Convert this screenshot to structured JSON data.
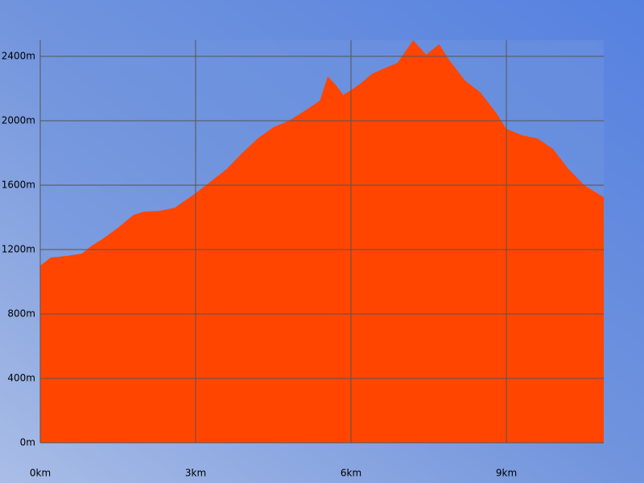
{
  "chart_data": {
    "type": "area",
    "color": "#ff4500",
    "grid": true,
    "grid_color": "#555555",
    "x": [
      0,
      0.2,
      0.5,
      0.8,
      1.0,
      1.2,
      1.5,
      1.8,
      2.0,
      2.3,
      2.6,
      3.0,
      3.3,
      3.6,
      3.9,
      4.2,
      4.5,
      4.8,
      5.1,
      5.4,
      5.55,
      5.7,
      5.85,
      6.0,
      6.2,
      6.4,
      6.6,
      6.9,
      7.2,
      7.45,
      7.7,
      7.9,
      8.2,
      8.5,
      8.8,
      9.0,
      9.3,
      9.6,
      9.9,
      10.2,
      10.5,
      10.88
    ],
    "values": [
      1100,
      1150,
      1160,
      1175,
      1225,
      1265,
      1335,
      1415,
      1435,
      1440,
      1460,
      1550,
      1625,
      1700,
      1800,
      1890,
      1960,
      2000,
      2060,
      2125,
      2275,
      2225,
      2160,
      2190,
      2235,
      2290,
      2320,
      2360,
      2500,
      2410,
      2475,
      2375,
      2250,
      2175,
      2050,
      1950,
      1910,
      1890,
      1825,
      1700,
      1600,
      1525
    ],
    "xlim": [
      0,
      10.88
    ],
    "ylim": [
      0,
      2500
    ],
    "xticks": [
      {
        "value": 0,
        "label": "0km"
      },
      {
        "value": 3,
        "label": "3km"
      },
      {
        "value": 6,
        "label": "6km"
      },
      {
        "value": 9,
        "label": "9km"
      }
    ],
    "yticks": [
      {
        "value": 0,
        "label": "0m"
      },
      {
        "value": 400,
        "label": "400m"
      },
      {
        "value": 800,
        "label": "800m"
      },
      {
        "value": 1200,
        "label": "1200m"
      },
      {
        "value": 1600,
        "label": "1600m"
      },
      {
        "value": 2000,
        "label": "2000m"
      },
      {
        "value": 2400,
        "label": "2400m"
      }
    ]
  }
}
